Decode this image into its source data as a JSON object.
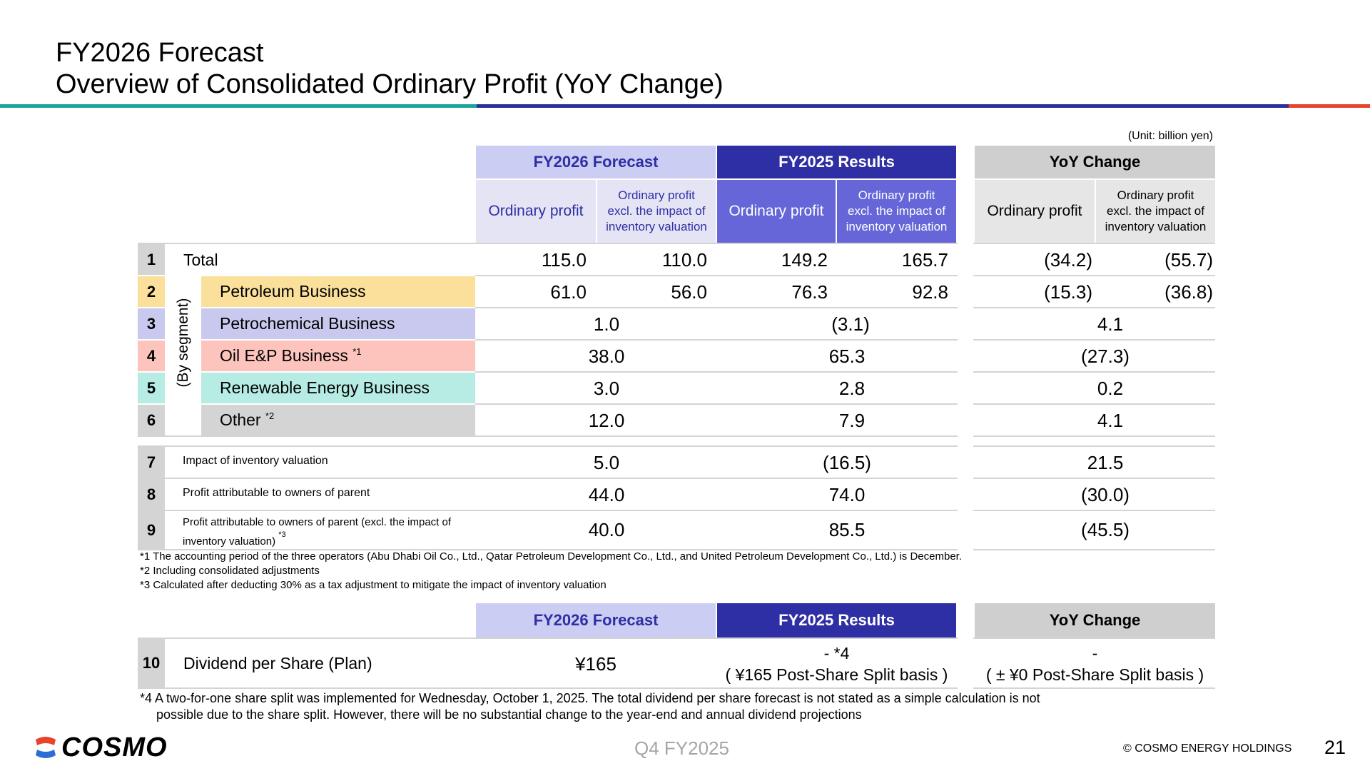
{
  "title_line1": "FY2026 Forecast",
  "title_line2": "Overview of Consolidated Ordinary Profit (YoY Change)",
  "unit": "(Unit: billion yen)",
  "colors": {
    "forecast_header": "#cccdf2",
    "forecast_sub": "#e4e4f5",
    "results_header": "#2e2fa4",
    "results_sub": "#6666d8",
    "yoy_header": "#cfcfcf",
    "yoy_sub": "#e6e6e6",
    "petroleum": "#fbe09b",
    "petrochemical": "#c9c9f0",
    "oil_ep": "#fcc4bc",
    "renewable": "#b6ece4",
    "other": "#d4d4d4",
    "bar_teal": "#1aa49a",
    "bar_navy": "#2b2f9a",
    "bar_red": "#e8442c"
  },
  "headers": {
    "forecast": "FY2026 Forecast",
    "results": "FY2025 Results",
    "yoy": "YoY Change",
    "ordinary_profit": "Ordinary profit",
    "excl_line1": "Ordinary profit",
    "excl_line2": "excl. the impact of",
    "excl_line3": "inventory valuation"
  },
  "by_segment": "(By segment)",
  "rows": [
    {
      "num": "1",
      "label": "Total",
      "f_op": "115.0",
      "f_ex": "110.0",
      "r_op": "149.2",
      "r_ex": "165.7",
      "y_op": "(34.2)",
      "y_ex": "(55.7)"
    },
    {
      "num": "2",
      "label": "Petroleum Business",
      "f_op": "61.0",
      "f_ex": "56.0",
      "r_op": "76.3",
      "r_ex": "92.8",
      "y_op": "(15.3)",
      "y_ex": "(36.8)"
    },
    {
      "num": "3",
      "label": "Petrochemical Business",
      "f": "1.0",
      "r": "(3.1)",
      "y": "4.1"
    },
    {
      "num": "4",
      "label": "Oil E&P Business",
      "sup": "*1",
      "f": "38.0",
      "r": "65.3",
      "y": "(27.3)"
    },
    {
      "num": "5",
      "label": "Renewable Energy Business",
      "f": "3.0",
      "r": "2.8",
      "y": "0.2"
    },
    {
      "num": "6",
      "label": "Other",
      "sup": "*2",
      "f": "12.0",
      "r": "7.9",
      "y": "4.1"
    },
    {
      "num": "7",
      "label": "Impact of inventory valuation",
      "f": "5.0",
      "r": "(16.5)",
      "y": "21.5"
    },
    {
      "num": "8",
      "label": "Profit attributable to owners of parent",
      "f": "44.0",
      "r": "74.0",
      "y": "(30.0)"
    },
    {
      "num": "9",
      "label_line1": "Profit attributable to owners of parent (excl. the impact of",
      "label_line2": "inventory valuation)",
      "sup": "*3",
      "f": "40.0",
      "r": "85.5",
      "y": "(45.5)"
    }
  ],
  "footnotes": [
    "*1 The accounting period of the three operators (Abu Dhabi Oil Co., Ltd., Qatar Petroleum Development Co., Ltd., and United Petroleum Development Co., Ltd.) is December.",
    "*2 Including consolidated adjustments",
    "*3 Calculated after deducting 30% as a tax adjustment to mitigate the impact of inventory valuation"
  ],
  "dividend": {
    "num": "10",
    "label": "Dividend per Share (Plan)",
    "forecast": "¥165",
    "results_line1": "- *4",
    "results_line2": "( ¥165 Post-Share Split basis )",
    "yoy_line1": "-",
    "yoy_line2": "( ± ¥0 Post-Share Split basis )"
  },
  "footnote4_line1": "*4 A two-for-one share split was implemented for Wednesday, October 1, 2025. The total dividend per share forecast is not stated as a simple calculation is not",
  "footnote4_line2": "possible due to the share split. However, there will be no substantial change to the year-end and annual dividend projections",
  "footer": {
    "logo": "COSMO",
    "period": "Q4 FY2025",
    "copyright": "© COSMO ENERGY HOLDINGS",
    "page": "21"
  }
}
